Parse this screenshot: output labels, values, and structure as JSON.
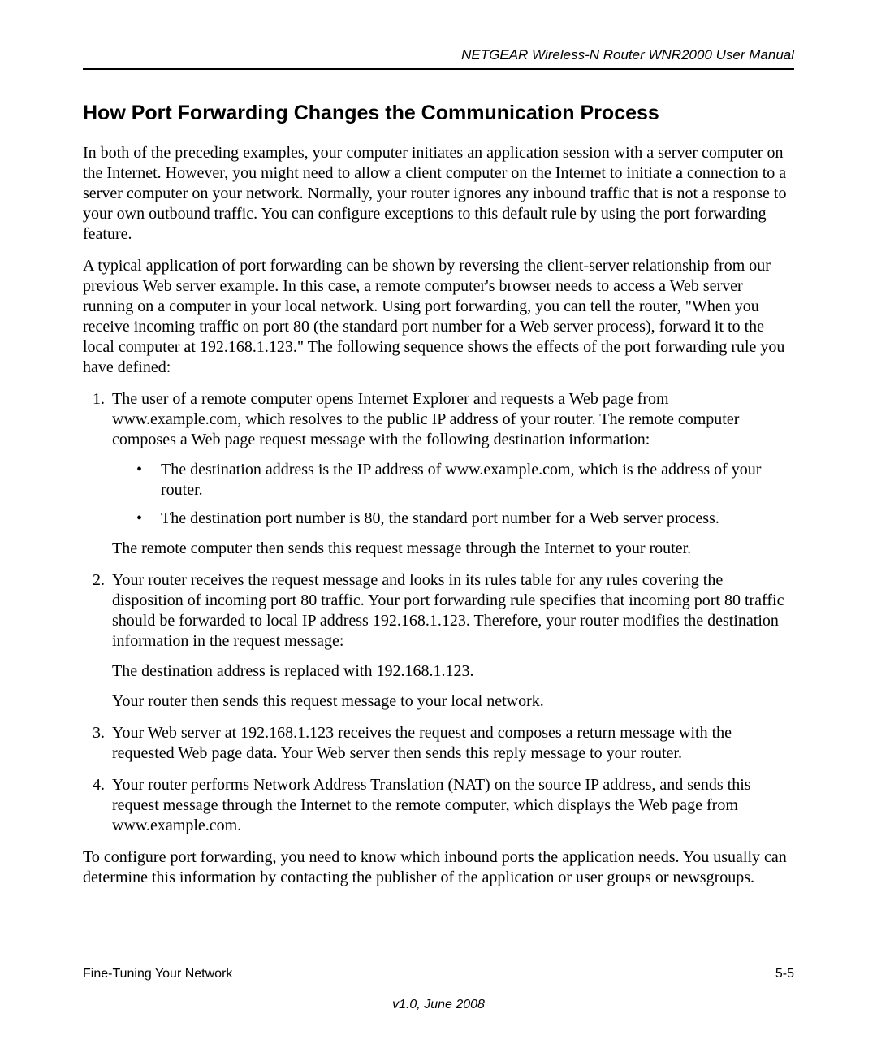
{
  "header": {
    "manual_title": "NETGEAR Wireless-N Router WNR2000 User Manual"
  },
  "content": {
    "section_title": "How Port Forwarding Changes the Communication Process",
    "para1": "In both of the preceding examples, your computer initiates an application session with a server computer on the Internet. However, you might need to allow a client computer on the Internet to initiate a connection to a server computer on your network. Normally, your router ignores any inbound traffic that is not a response to your own outbound traffic. You can configure exceptions to this default rule by using the port forwarding feature.",
    "para2": "A typical application of port forwarding can be shown by reversing the client-server relationship from our previous Web server example. In this case, a remote computer's browser needs to access a Web server running on a computer in your local network. Using port forwarding, you can tell the router, \"When you receive incoming traffic on port 80 (the standard port number for a Web server process), forward it to the local computer at 192.168.1.123.\" The following sequence shows the effects of the port forwarding rule you have defined:",
    "list": {
      "item1": {
        "text1": "The user of a remote computer opens Internet Explorer and requests a Web page from www.example.com, which resolves to the public IP address of your router. The remote computer composes a Web page request message with the following destination information:",
        "bullets": {
          "b1": "The destination address is the IP address of www.example.com, which is the address of your router.",
          "b2": "The destination port number is 80, the standard port number for a Web server process."
        },
        "text2": "The remote computer then sends this request message through the Internet to your router."
      },
      "item2": {
        "text1": "Your router receives the request message and looks in its rules table for any rules covering the disposition of incoming port 80 traffic. Your port forwarding rule specifies that incoming port 80 traffic should be forwarded to local IP address 192.168.1.123. Therefore, your router modifies the destination information in the request message:",
        "text2": "The destination address is replaced with 192.168.1.123.",
        "text3": "Your router then sends this request message to your local network."
      },
      "item3": {
        "text1": "Your Web server at 192.168.1.123 receives the request and composes a return message with the requested Web page data. Your Web server then sends this reply message to your router."
      },
      "item4": {
        "text1": "Your router performs Network Address Translation (NAT) on the source IP address, and sends this request message through the Internet to the remote computer, which displays the Web page from www.example.com."
      }
    },
    "para3": "To configure port forwarding, you need to know which inbound ports the application needs. You usually can determine this information by contacting the publisher of the application or user groups or newsgroups."
  },
  "footer": {
    "section_name": "Fine-Tuning Your Network",
    "page_number": "5-5",
    "version": "v1.0, June 2008"
  }
}
